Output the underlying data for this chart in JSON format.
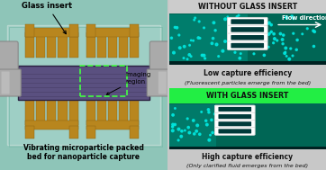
{
  "title_top": "WITHOUT GLASS INSERT",
  "title_bottom": "WITH GLASS INSERT",
  "label_top_bold": "Low capture efficiency",
  "label_top_italic": "(Fluorescent particles emerge from the bed)",
  "label_bottom_bold": "High capture efficiency",
  "label_bottom_italic": "(Only clarified fluid emerges from the bed)",
  "flow_label": "Flow direction",
  "glass_insert_label": "Glass insert",
  "imaging_label": "Imaging\nregion",
  "vibrating_label": "Vibrating microparticle packed\nbed for nanoparticle capture",
  "left_bg": "#8ec5b8",
  "glass_color": "#a0cfc4",
  "gold_color": "#b8861e",
  "gold_edge": "#8a6010",
  "channel_color": "#5a5080",
  "channel_edge": "#2a2040",
  "tube_color": "#b0b0b0",
  "tube_edge": "#888888",
  "fig_bg": "#c8c8c8",
  "teal_panel": "#006655",
  "teal_bright_panel": "#007766",
  "particle_color": "#00e8e0",
  "sieve_white": "#ffffff",
  "sieve_dark": "#003a3a",
  "gray_header_color": "#cccccc",
  "green_header_color": "#22ee44",
  "border_dark": "#002222",
  "caption_color": "#111111"
}
